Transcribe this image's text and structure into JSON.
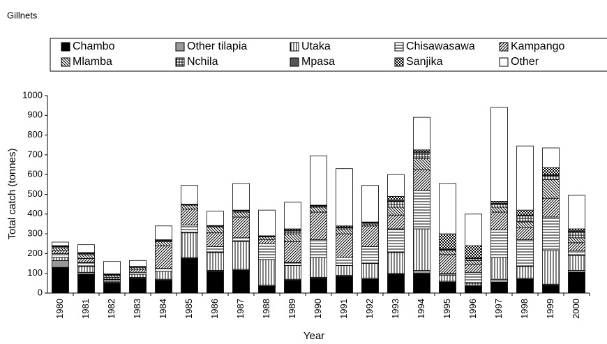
{
  "chart_data": {
    "type": "stacked-bar",
    "title": "Gillnets",
    "x_label": "Year",
    "y_label": "Total catch (tonnes)",
    "categories": [
      "1980",
      "1981",
      "1982",
      "1983",
      "1984",
      "1985",
      "1986",
      "1987",
      "1988",
      "1989",
      "1990",
      "1991",
      "1992",
      "1993",
      "1994",
      "1995",
      "1996",
      "1997",
      "1998",
      "1999",
      "2000"
    ],
    "series": [
      {
        "name": "Chambo",
        "color": "#000000",
        "pattern": "solid",
        "values": [
          130,
          95,
          50,
          75,
          65,
          175,
          110,
          115,
          35,
          65,
          75,
          85,
          70,
          95,
          100,
          55,
          35,
          55,
          70,
          40,
          105
        ]
      },
      {
        "name": "Other tilapia",
        "color": "#999999",
        "pattern": "solid",
        "values": [
          35,
          10,
          5,
          5,
          5,
          5,
          5,
          5,
          5,
          5,
          5,
          5,
          5,
          5,
          15,
          5,
          5,
          15,
          5,
          5,
          10
        ]
      },
      {
        "name": "Utaka",
        "color": "#000000",
        "pattern": "vertical",
        "values": [
          15,
          30,
          5,
          15,
          40,
          125,
          90,
          140,
          130,
          70,
          100,
          50,
          75,
          105,
          210,
          30,
          10,
          110,
          60,
          170,
          75
        ]
      },
      {
        "name": "Chisawasawa",
        "color": "#000000",
        "pattern": "horizontal",
        "values": [
          20,
          20,
          10,
          10,
          15,
          40,
          30,
          20,
          80,
          15,
          90,
          40,
          85,
          120,
          195,
          10,
          55,
          140,
          135,
          170,
          25
        ]
      },
      {
        "name": "Kampango",
        "color": "#000000",
        "pattern": "diagonal-up",
        "values": [
          15,
          20,
          10,
          15,
          115,
          80,
          70,
          105,
          20,
          105,
          140,
          120,
          105,
          70,
          105,
          95,
          40,
          90,
          60,
          95,
          40
        ]
      },
      {
        "name": "Mlamba",
        "color": "#000000",
        "pattern": "diagonal-down",
        "values": [
          15,
          20,
          10,
          10,
          20,
          20,
          30,
          25,
          15,
          40,
          25,
          25,
          10,
          40,
          55,
          20,
          20,
          25,
          30,
          95,
          25
        ]
      },
      {
        "name": "Nchila",
        "color": "#000000",
        "pattern": "grid",
        "values": [
          5,
          5,
          3,
          3,
          5,
          3,
          5,
          5,
          3,
          15,
          5,
          5,
          5,
          30,
          30,
          5,
          10,
          15,
          30,
          20,
          30
        ]
      },
      {
        "name": "Mpasa",
        "color": "#555555",
        "pattern": "solid",
        "values": [
          3,
          3,
          2,
          1,
          3,
          1,
          1,
          3,
          1,
          5,
          3,
          5,
          3,
          5,
          5,
          3,
          3,
          5,
          5,
          5,
          5
        ]
      },
      {
        "name": "Sanjika",
        "color": "#000000",
        "pattern": "dots",
        "values": [
          2,
          2,
          2,
          1,
          2,
          1,
          1,
          2,
          1,
          5,
          2,
          5,
          2,
          20,
          10,
          77,
          62,
          10,
          25,
          35,
          10
        ]
      },
      {
        "name": "Other",
        "color": "#ffffff",
        "pattern": "solid",
        "values": [
          18,
          40,
          63,
          30,
          70,
          95,
          73,
          135,
          130,
          135,
          250,
          290,
          185,
          110,
          165,
          255,
          160,
          475,
          325,
          100,
          170
        ]
      }
    ],
    "ylim": [
      0,
      1000
    ],
    "yticks": [
      0,
      100,
      200,
      300,
      400,
      500,
      600,
      700,
      800,
      900,
      1000
    ],
    "legend": "top"
  }
}
